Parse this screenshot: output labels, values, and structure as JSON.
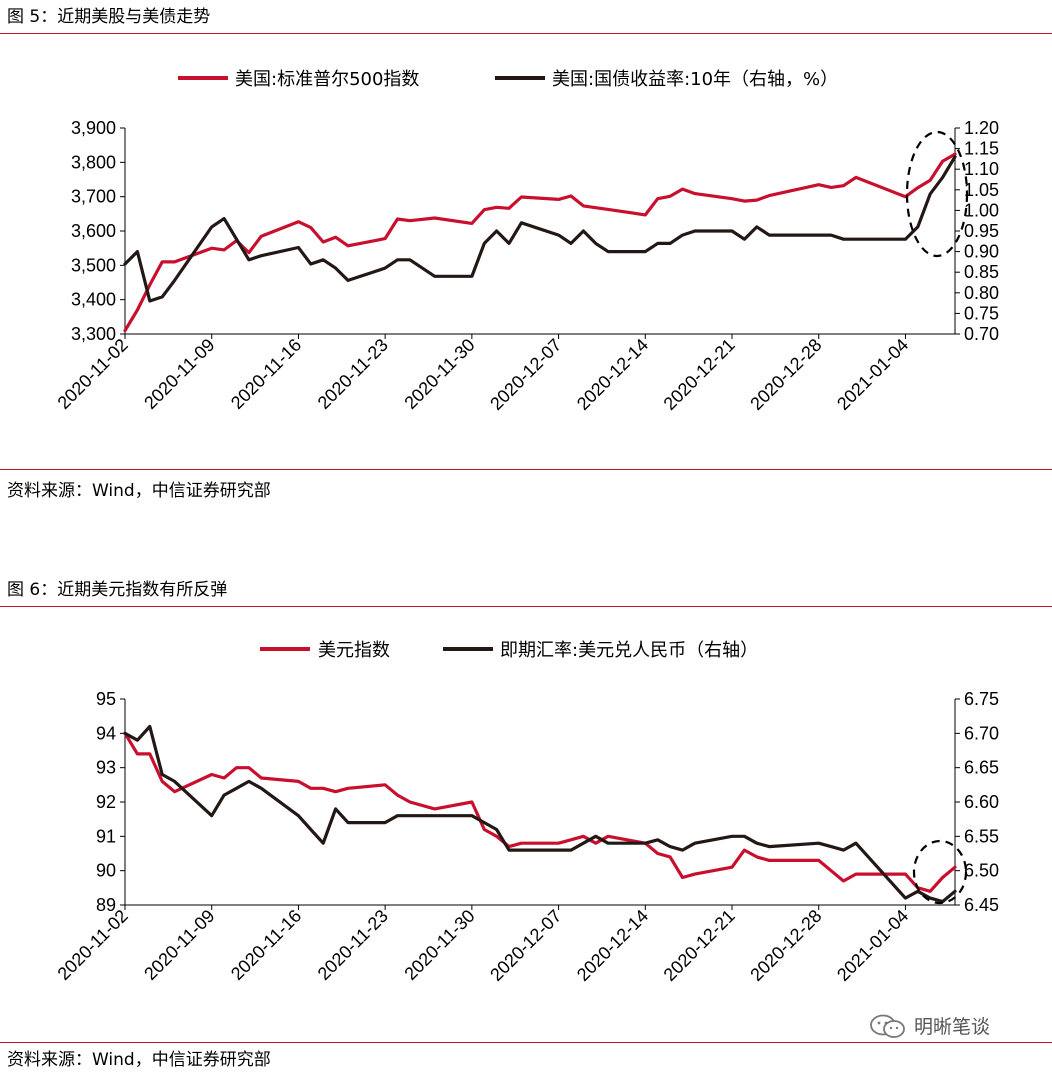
{
  "figure5": {
    "title": "图 5：近期美股与美债走势",
    "source": "资料来源：Wind，中信证券研究部"
  },
  "figure6": {
    "title": "图 6：近期美元指数有所反弹",
    "source": "资料来源：Wind，中信证券研究部"
  },
  "watermark": {
    "text": "明晰笔谈",
    "icon": "wechat-icon"
  },
  "colors": {
    "series_red": "#c8102e",
    "series_black": "#231815",
    "rule": "#c8102e"
  },
  "chart_data": [
    {
      "type": "line",
      "title": "",
      "legend_position": "top",
      "grid": false,
      "x_tick_labels": [
        "2020-11-02",
        "2020-11-09",
        "2020-11-16",
        "2020-11-23",
        "2020-11-30",
        "2020-12-07",
        "2020-12-14",
        "2020-12-21",
        "2020-12-28",
        "2021-01-04"
      ],
      "x_range": [
        "2020-11-02",
        "2021-01-08"
      ],
      "y_left": {
        "range": [
          3300,
          3900
        ],
        "ticks": [
          "3,300",
          "3,400",
          "3,500",
          "3,600",
          "3,700",
          "3,800",
          "3,900"
        ]
      },
      "y_right": {
        "range": [
          0.7,
          1.2
        ],
        "ticks": [
          "0.70",
          "0.75",
          "0.80",
          "0.85",
          "0.90",
          "0.95",
          "1.00",
          "1.05",
          "1.10",
          "1.15",
          "1.20"
        ]
      },
      "series": [
        {
          "name": "美国:标准普尔500指数",
          "axis": "left",
          "color": "#c8102e",
          "points": [
            [
              "2020-11-02",
              3310
            ],
            [
              "2020-11-03",
              3370
            ],
            [
              "2020-11-04",
              3443
            ],
            [
              "2020-11-05",
              3510
            ],
            [
              "2020-11-06",
              3510
            ],
            [
              "2020-11-09",
              3550
            ],
            [
              "2020-11-10",
              3545
            ],
            [
              "2020-11-11",
              3572
            ],
            [
              "2020-11-12",
              3537
            ],
            [
              "2020-11-13",
              3585
            ],
            [
              "2020-11-16",
              3627
            ],
            [
              "2020-11-17",
              3610
            ],
            [
              "2020-11-18",
              3568
            ],
            [
              "2020-11-19",
              3582
            ],
            [
              "2020-11-20",
              3557
            ],
            [
              "2020-11-23",
              3578
            ],
            [
              "2020-11-24",
              3635
            ],
            [
              "2020-11-25",
              3630
            ],
            [
              "2020-11-27",
              3638
            ],
            [
              "2020-11-30",
              3622
            ],
            [
              "2020-12-01",
              3662
            ],
            [
              "2020-12-02",
              3669
            ],
            [
              "2020-12-03",
              3666
            ],
            [
              "2020-12-04",
              3699
            ],
            [
              "2020-12-07",
              3692
            ],
            [
              "2020-12-08",
              3702
            ],
            [
              "2020-12-09",
              3673
            ],
            [
              "2020-12-10",
              3668
            ],
            [
              "2020-12-11",
              3663
            ],
            [
              "2020-12-14",
              3647
            ],
            [
              "2020-12-15",
              3694
            ],
            [
              "2020-12-16",
              3701
            ],
            [
              "2020-12-17",
              3722
            ],
            [
              "2020-12-18",
              3709
            ],
            [
              "2020-12-21",
              3694
            ],
            [
              "2020-12-22",
              3687
            ],
            [
              "2020-12-23",
              3690
            ],
            [
              "2020-12-24",
              3703
            ],
            [
              "2020-12-28",
              3735
            ],
            [
              "2020-12-29",
              3727
            ],
            [
              "2020-12-30",
              3732
            ],
            [
              "2020-12-31",
              3756
            ],
            [
              "2021-01-04",
              3700
            ],
            [
              "2021-01-05",
              3726
            ],
            [
              "2021-01-06",
              3748
            ],
            [
              "2021-01-07",
              3803
            ],
            [
              "2021-01-08",
              3824
            ]
          ]
        },
        {
          "name": "美国:国债收益率:10年（右轴，%）",
          "axis": "right",
          "color": "#231815",
          "points": [
            [
              "2020-11-02",
              0.87
            ],
            [
              "2020-11-03",
              0.9
            ],
            [
              "2020-11-04",
              0.78
            ],
            [
              "2020-11-05",
              0.79
            ],
            [
              "2020-11-06",
              0.83
            ],
            [
              "2020-11-09",
              0.96
            ],
            [
              "2020-11-10",
              0.98
            ],
            [
              "2020-11-11",
              0.93
            ],
            [
              "2020-11-12",
              0.88
            ],
            [
              "2020-11-13",
              0.89
            ],
            [
              "2020-11-16",
              0.91
            ],
            [
              "2020-11-17",
              0.87
            ],
            [
              "2020-11-18",
              0.88
            ],
            [
              "2020-11-19",
              0.86
            ],
            [
              "2020-11-20",
              0.83
            ],
            [
              "2020-11-23",
              0.86
            ],
            [
              "2020-11-24",
              0.88
            ],
            [
              "2020-11-25",
              0.88
            ],
            [
              "2020-11-27",
              0.84
            ],
            [
              "2020-11-30",
              0.84
            ],
            [
              "2020-12-01",
              0.92
            ],
            [
              "2020-12-02",
              0.95
            ],
            [
              "2020-12-03",
              0.92
            ],
            [
              "2020-12-04",
              0.97
            ],
            [
              "2020-12-07",
              0.94
            ],
            [
              "2020-12-08",
              0.92
            ],
            [
              "2020-12-09",
              0.95
            ],
            [
              "2020-12-10",
              0.92
            ],
            [
              "2020-12-11",
              0.9
            ],
            [
              "2020-12-14",
              0.9
            ],
            [
              "2020-12-15",
              0.92
            ],
            [
              "2020-12-16",
              0.92
            ],
            [
              "2020-12-17",
              0.94
            ],
            [
              "2020-12-18",
              0.95
            ],
            [
              "2020-12-21",
              0.95
            ],
            [
              "2020-12-22",
              0.93
            ],
            [
              "2020-12-23",
              0.96
            ],
            [
              "2020-12-24",
              0.94
            ],
            [
              "2020-12-28",
              0.94
            ],
            [
              "2020-12-29",
              0.94
            ],
            [
              "2020-12-30",
              0.93
            ],
            [
              "2020-12-31",
              0.93
            ],
            [
              "2021-01-04",
              0.93
            ],
            [
              "2021-01-05",
              0.96
            ],
            [
              "2021-01-06",
              1.04
            ],
            [
              "2021-01-07",
              1.08
            ],
            [
              "2021-01-08",
              1.13
            ]
          ]
        }
      ]
    },
    {
      "type": "line",
      "title": "",
      "legend_position": "top",
      "grid": false,
      "x_tick_labels": [
        "2020-11-02",
        "2020-11-09",
        "2020-11-16",
        "2020-11-23",
        "2020-11-30",
        "2020-12-07",
        "2020-12-14",
        "2020-12-21",
        "2020-12-28",
        "2021-01-04"
      ],
      "x_range": [
        "2020-11-02",
        "2021-01-08"
      ],
      "y_left": {
        "range": [
          89,
          95
        ],
        "ticks": [
          "89",
          "90",
          "91",
          "92",
          "93",
          "94",
          "95"
        ]
      },
      "y_right": {
        "range": [
          6.45,
          6.75
        ],
        "ticks": [
          "6.45",
          "6.50",
          "6.55",
          "6.60",
          "6.65",
          "6.70",
          "6.75"
        ]
      },
      "series": [
        {
          "name": "美元指数",
          "axis": "left",
          "color": "#c8102e",
          "points": [
            [
              "2020-11-02",
              94.0
            ],
            [
              "2020-11-03",
              93.4
            ],
            [
              "2020-11-04",
              93.4
            ],
            [
              "2020-11-05",
              92.6
            ],
            [
              "2020-11-06",
              92.3
            ],
            [
              "2020-11-09",
              92.8
            ],
            [
              "2020-11-10",
              92.7
            ],
            [
              "2020-11-11",
              93.0
            ],
            [
              "2020-11-12",
              93.0
            ],
            [
              "2020-11-13",
              92.7
            ],
            [
              "2020-11-16",
              92.6
            ],
            [
              "2020-11-17",
              92.4
            ],
            [
              "2020-11-18",
              92.4
            ],
            [
              "2020-11-19",
              92.3
            ],
            [
              "2020-11-20",
              92.4
            ],
            [
              "2020-11-23",
              92.5
            ],
            [
              "2020-11-24",
              92.2
            ],
            [
              "2020-11-25",
              92.0
            ],
            [
              "2020-11-27",
              91.8
            ],
            [
              "2020-11-30",
              92.0
            ],
            [
              "2020-12-01",
              91.2
            ],
            [
              "2020-12-02",
              91.0
            ],
            [
              "2020-12-03",
              90.7
            ],
            [
              "2020-12-04",
              90.8
            ],
            [
              "2020-12-07",
              90.8
            ],
            [
              "2020-12-08",
              90.9
            ],
            [
              "2020-12-09",
              91.0
            ],
            [
              "2020-12-10",
              90.8
            ],
            [
              "2020-12-11",
              91.0
            ],
            [
              "2020-12-14",
              90.8
            ],
            [
              "2020-12-15",
              90.5
            ],
            [
              "2020-12-16",
              90.4
            ],
            [
              "2020-12-17",
              89.8
            ],
            [
              "2020-12-18",
              89.9
            ],
            [
              "2020-12-21",
              90.1
            ],
            [
              "2020-12-22",
              90.6
            ],
            [
              "2020-12-23",
              90.4
            ],
            [
              "2020-12-24",
              90.3
            ],
            [
              "2020-12-28",
              90.3
            ],
            [
              "2020-12-29",
              90.0
            ],
            [
              "2020-12-30",
              89.7
            ],
            [
              "2020-12-31",
              89.9
            ],
            [
              "2021-01-04",
              89.9
            ],
            [
              "2021-01-05",
              89.5
            ],
            [
              "2021-01-06",
              89.4
            ],
            [
              "2021-01-07",
              89.8
            ],
            [
              "2021-01-08",
              90.1
            ]
          ]
        },
        {
          "name": "即期汇率:美元兑人民币（右轴）",
          "axis": "right",
          "color": "#231815",
          "points": [
            [
              "2020-11-02",
              6.7
            ],
            [
              "2020-11-03",
              6.69
            ],
            [
              "2020-11-04",
              6.71
            ],
            [
              "2020-11-05",
              6.64
            ],
            [
              "2020-11-06",
              6.63
            ],
            [
              "2020-11-09",
              6.58
            ],
            [
              "2020-11-10",
              6.61
            ],
            [
              "2020-11-11",
              6.62
            ],
            [
              "2020-11-12",
              6.63
            ],
            [
              "2020-11-13",
              6.62
            ],
            [
              "2020-11-16",
              6.58
            ],
            [
              "2020-11-17",
              6.56
            ],
            [
              "2020-11-18",
              6.54
            ],
            [
              "2020-11-19",
              6.59
            ],
            [
              "2020-11-20",
              6.57
            ],
            [
              "2020-11-23",
              6.57
            ],
            [
              "2020-11-24",
              6.58
            ],
            [
              "2020-11-25",
              6.58
            ],
            [
              "2020-11-27",
              6.58
            ],
            [
              "2020-11-30",
              6.58
            ],
            [
              "2020-12-01",
              6.57
            ],
            [
              "2020-12-02",
              6.56
            ],
            [
              "2020-12-03",
              6.53
            ],
            [
              "2020-12-04",
              6.53
            ],
            [
              "2020-12-07",
              6.53
            ],
            [
              "2020-12-08",
              6.53
            ],
            [
              "2020-12-09",
              6.54
            ],
            [
              "2020-12-10",
              6.55
            ],
            [
              "2020-12-11",
              6.54
            ],
            [
              "2020-12-14",
              6.54
            ],
            [
              "2020-12-15",
              6.545
            ],
            [
              "2020-12-16",
              6.535
            ],
            [
              "2020-12-17",
              6.53
            ],
            [
              "2020-12-18",
              6.54
            ],
            [
              "2020-12-21",
              6.55
            ],
            [
              "2020-12-22",
              6.55
            ],
            [
              "2020-12-23",
              6.54
            ],
            [
              "2020-12-24",
              6.535
            ],
            [
              "2020-12-28",
              6.54
            ],
            [
              "2020-12-29",
              6.535
            ],
            [
              "2020-12-30",
              6.53
            ],
            [
              "2020-12-31",
              6.54
            ],
            [
              "2021-01-04",
              6.46
            ],
            [
              "2021-01-05",
              6.47
            ],
            [
              "2021-01-06",
              6.46
            ],
            [
              "2021-01-07",
              6.455
            ],
            [
              "2021-01-08",
              6.47
            ]
          ]
        }
      ]
    }
  ]
}
